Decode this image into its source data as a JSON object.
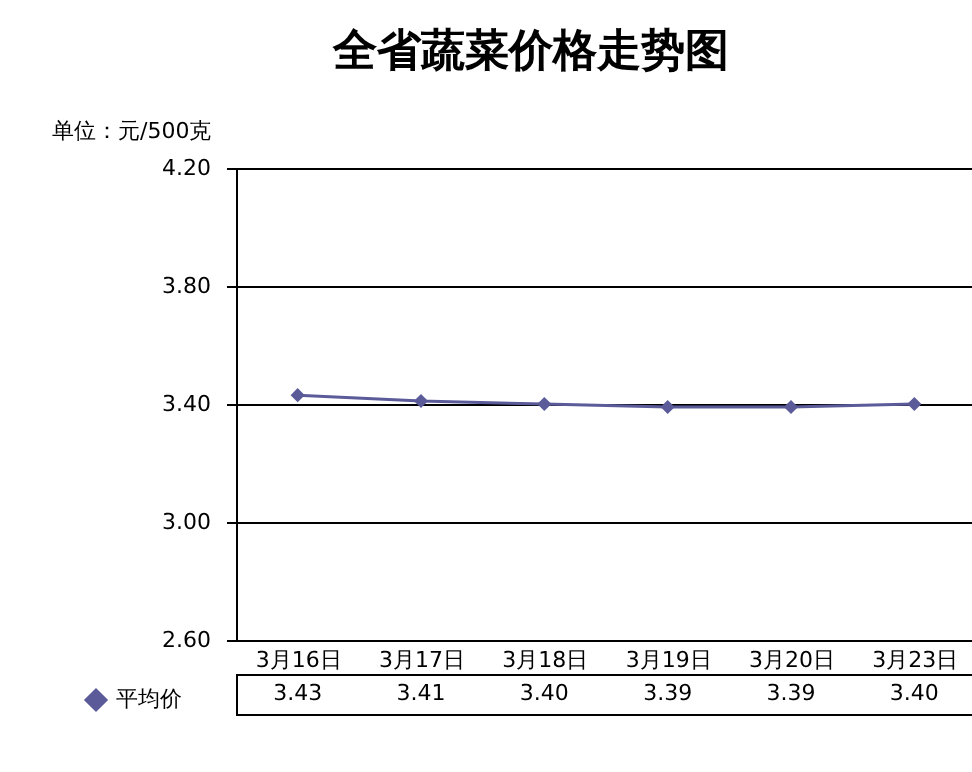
{
  "chart_data": {
    "type": "line",
    "title": "全省蔬菜价格走势图",
    "annotations": [
      "单位：元/500克"
    ],
    "categories": [
      "3月16日",
      "3月17日",
      "3月18日",
      "3月19日",
      "3月20日",
      "3月23日"
    ],
    "series": [
      {
        "name": "平均价",
        "color": "#5b5b9a",
        "values": [
          3.43,
          3.41,
          3.4,
          3.39,
          3.39,
          3.4
        ],
        "value_labels": [
          "3.43",
          "3.41",
          "3.40",
          "3.39",
          "3.39",
          "3.40"
        ]
      }
    ],
    "ylim": [
      2.6,
      4.2
    ],
    "yticks": [
      {
        "value": 2.6,
        "label": "2.60"
      },
      {
        "value": 3.0,
        "label": "3.00"
      },
      {
        "value": 3.4,
        "label": "3.40"
      },
      {
        "value": 3.8,
        "label": "3.80"
      },
      {
        "value": 4.2,
        "label": "4.20"
      }
    ],
    "grid": "y",
    "marker": "diamond",
    "line_style": "solid",
    "legend": "bottom left"
  }
}
